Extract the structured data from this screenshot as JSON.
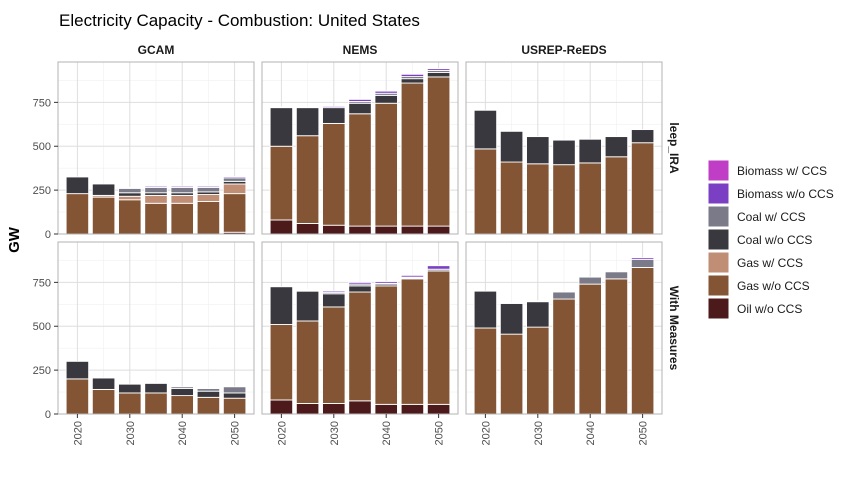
{
  "chart_data": {
    "type": "bar",
    "stacked": true,
    "title": "Electricity Capacity - Combustion: United States",
    "ylabel": "GW",
    "xlabel": "",
    "ylim": [
      0,
      980
    ],
    "y_ticks": [
      0,
      250,
      500,
      750
    ],
    "x_ticks": [
      2020,
      2030,
      2040,
      2050
    ],
    "x": [
      2020,
      2025,
      2030,
      2035,
      2040,
      2045,
      2050
    ],
    "grid": true,
    "legend_position": "right",
    "facet_columns": [
      "GCAM",
      "NEMS",
      "USREP-ReEDS"
    ],
    "facet_rows": [
      "leep_IRA",
      "With Measures"
    ],
    "series": [
      {
        "name": "Biomass w/ CCS",
        "color": "#C03DC6"
      },
      {
        "name": "Biomass w/o CCS",
        "color": "#7B3FC4"
      },
      {
        "name": "Coal w/ CCS",
        "color": "#7A7A88"
      },
      {
        "name": "Coal w/o CCS",
        "color": "#38383E"
      },
      {
        "name": "Gas w/ CCS",
        "color": "#BF8E75"
      },
      {
        "name": "Gas w/o CCS",
        "color": "#845535"
      },
      {
        "name": "Oil w/o CCS",
        "color": "#4D1A1C"
      }
    ],
    "panels": [
      {
        "row": "leep_IRA",
        "column": "GCAM",
        "stacks": [
          {
            "x": 2020,
            "segments": {
              "Gas w/o CCS": 230,
              "Coal w/o CCS": 95
            }
          },
          {
            "x": 2025,
            "segments": {
              "Gas w/o CCS": 210,
              "Gas w/ CCS": 10,
              "Coal w/o CCS": 65
            }
          },
          {
            "x": 2030,
            "segments": {
              "Gas w/o CCS": 195,
              "Gas w/ CCS": 20,
              "Coal w/ CCS": 25,
              "Coal w/o CCS": 20,
              "Biomass w/o CCS": 5
            }
          },
          {
            "x": 2035,
            "segments": {
              "Gas w/o CCS": 175,
              "Gas w/ CCS": 45,
              "Coal w/ CCS": 30,
              "Coal w/o CCS": 15,
              "Biomass w/o CCS": 7
            }
          },
          {
            "x": 2040,
            "segments": {
              "Gas w/o CCS": 175,
              "Gas w/ CCS": 45,
              "Coal w/ CCS": 30,
              "Coal w/o CCS": 15,
              "Biomass w/o CCS": 7
            }
          },
          {
            "x": 2045,
            "segments": {
              "Gas w/o CCS": 185,
              "Gas w/ CCS": 40,
              "Coal w/ CCS": 25,
              "Coal w/o CCS": 15,
              "Biomass w/o CCS": 7
            }
          },
          {
            "x": 2050,
            "segments": {
              "Oil w/o CCS": 10,
              "Gas w/o CCS": 220,
              "Gas w/ CCS": 55,
              "Coal w/ CCS": 20,
              "Coal w/o CCS": 15,
              "Biomass w/o CCS": 7
            }
          }
        ]
      },
      {
        "row": "leep_IRA",
        "column": "NEMS",
        "stacks": [
          {
            "x": 2020,
            "segments": {
              "Oil w/o CCS": 80,
              "Gas w/o CCS": 420,
              "Coal w/o CCS": 220,
              "Biomass w/o CCS": 5
            }
          },
          {
            "x": 2025,
            "segments": {
              "Oil w/o CCS": 60,
              "Gas w/o CCS": 500,
              "Coal w/o CCS": 160,
              "Biomass w/o CCS": 5
            }
          },
          {
            "x": 2030,
            "segments": {
              "Oil w/o CCS": 50,
              "Gas w/o CCS": 580,
              "Coal w/o CCS": 90,
              "Biomass w/o CCS": 7
            }
          },
          {
            "x": 2035,
            "segments": {
              "Oil w/o CCS": 45,
              "Gas w/o CCS": 640,
              "Coal w/o CCS": 60,
              "Coal w/ CCS": 10,
              "Biomass w/o CCS": 12
            }
          },
          {
            "x": 2040,
            "segments": {
              "Oil w/o CCS": 45,
              "Gas w/o CCS": 700,
              "Coal w/o CCS": 45,
              "Coal w/ CCS": 12,
              "Biomass w/o CCS": 12
            }
          },
          {
            "x": 2045,
            "segments": {
              "Oil w/o CCS": 45,
              "Gas w/o CCS": 815,
              "Coal w/o CCS": 25,
              "Coal w/ CCS": 12,
              "Biomass w/o CCS": 13
            }
          },
          {
            "x": 2050,
            "segments": {
              "Oil w/o CCS": 45,
              "Gas w/o CCS": 850,
              "Coal w/o CCS": 25,
              "Coal w/ CCS": 12,
              "Biomass w/o CCS": 10
            }
          }
        ]
      },
      {
        "row": "leep_IRA",
        "column": "USREP-ReEDS",
        "stacks": [
          {
            "x": 2020,
            "segments": {
              "Gas w/o CCS": 485,
              "Coal w/o CCS": 220
            }
          },
          {
            "x": 2025,
            "segments": {
              "Gas w/o CCS": 410,
              "Coal w/o CCS": 175
            }
          },
          {
            "x": 2030,
            "segments": {
              "Gas w/o CCS": 400,
              "Coal w/o CCS": 155
            }
          },
          {
            "x": 2035,
            "segments": {
              "Gas w/o CCS": 395,
              "Coal w/o CCS": 140
            }
          },
          {
            "x": 2040,
            "segments": {
              "Gas w/o CCS": 405,
              "Coal w/o CCS": 135
            }
          },
          {
            "x": 2045,
            "segments": {
              "Gas w/o CCS": 440,
              "Coal w/o CCS": 115
            }
          },
          {
            "x": 2050,
            "segments": {
              "Gas w/o CCS": 520,
              "Coal w/o CCS": 75
            }
          }
        ]
      },
      {
        "row": "With Measures",
        "column": "GCAM",
        "stacks": [
          {
            "x": 2020,
            "segments": {
              "Gas w/o CCS": 200,
              "Coal w/o CCS": 100
            }
          },
          {
            "x": 2025,
            "segments": {
              "Gas w/o CCS": 140,
              "Coal w/o CCS": 65
            }
          },
          {
            "x": 2030,
            "segments": {
              "Gas w/o CCS": 120,
              "Coal w/o CCS": 50
            }
          },
          {
            "x": 2035,
            "segments": {
              "Gas w/o CCS": 120,
              "Coal w/o CCS": 55,
              "Biomass w/o CCS": 3
            }
          },
          {
            "x": 2040,
            "segments": {
              "Gas w/o CCS": 105,
              "Coal w/o CCS": 40,
              "Coal w/ CCS": 10
            }
          },
          {
            "x": 2045,
            "segments": {
              "Gas w/o CCS": 95,
              "Coal w/o CCS": 35,
              "Coal w/ CCS": 15
            }
          },
          {
            "x": 2050,
            "segments": {
              "Gas w/o CCS": 90,
              "Coal w/o CCS": 30,
              "Coal w/ CCS": 35
            }
          }
        ]
      },
      {
        "row": "With Measures",
        "column": "NEMS",
        "stacks": [
          {
            "x": 2020,
            "segments": {
              "Oil w/o CCS": 80,
              "Gas w/o CCS": 430,
              "Coal w/o CCS": 215
            }
          },
          {
            "x": 2025,
            "segments": {
              "Oil w/o CCS": 60,
              "Gas w/o CCS": 470,
              "Coal w/o CCS": 170,
              "Coal w/ CCS": 5,
              "Biomass w/o CCS": 5
            }
          },
          {
            "x": 2030,
            "segments": {
              "Oil w/o CCS": 60,
              "Gas w/o CCS": 550,
              "Coal w/o CCS": 75,
              "Coal w/ CCS": 7,
              "Biomass w/o CCS": 8
            }
          },
          {
            "x": 2035,
            "segments": {
              "Oil w/o CCS": 75,
              "Gas w/o CCS": 620,
              "Coal w/o CCS": 35,
              "Coal w/ CCS": 10,
              "Biomass w/o CCS": 10
            }
          },
          {
            "x": 2040,
            "segments": {
              "Oil w/o CCS": 55,
              "Gas w/o CCS": 675,
              "Coal w/o CCS": 10,
              "Coal w/ CCS": 5,
              "Biomass w/o CCS": 10
            }
          },
          {
            "x": 2045,
            "segments": {
              "Oil w/o CCS": 55,
              "Gas w/o CCS": 715,
              "Coal w/o CCS": 5,
              "Coal w/ CCS": 5,
              "Biomass w/o CCS": 10
            }
          },
          {
            "x": 2050,
            "segments": {
              "Oil w/o CCS": 55,
              "Gas w/o CCS": 760,
              "Coal w/ CCS": 10,
              "Biomass w/o CCS": 20
            }
          }
        ]
      },
      {
        "row": "With Measures",
        "column": "USREP-ReEDS",
        "stacks": [
          {
            "x": 2020,
            "segments": {
              "Gas w/o CCS": 490,
              "Coal w/o CCS": 210
            }
          },
          {
            "x": 2025,
            "segments": {
              "Gas w/o CCS": 455,
              "Coal w/o CCS": 175,
              "Biomass w/o CCS": 3
            }
          },
          {
            "x": 2030,
            "segments": {
              "Gas w/o CCS": 495,
              "Coal w/o CCS": 145,
              "Coal w/ CCS": 5
            }
          },
          {
            "x": 2035,
            "segments": {
              "Gas w/o CCS": 655,
              "Coal w/ CCS": 40
            }
          },
          {
            "x": 2040,
            "segments": {
              "Gas w/o CCS": 740,
              "Coal w/ CCS": 40
            }
          },
          {
            "x": 2045,
            "segments": {
              "Gas w/o CCS": 770,
              "Coal w/ CCS": 40
            }
          },
          {
            "x": 2050,
            "segments": {
              "Gas w/o CCS": 835,
              "Coal w/ CCS": 45,
              "Biomass w/o CCS": 10
            }
          }
        ]
      }
    ]
  }
}
